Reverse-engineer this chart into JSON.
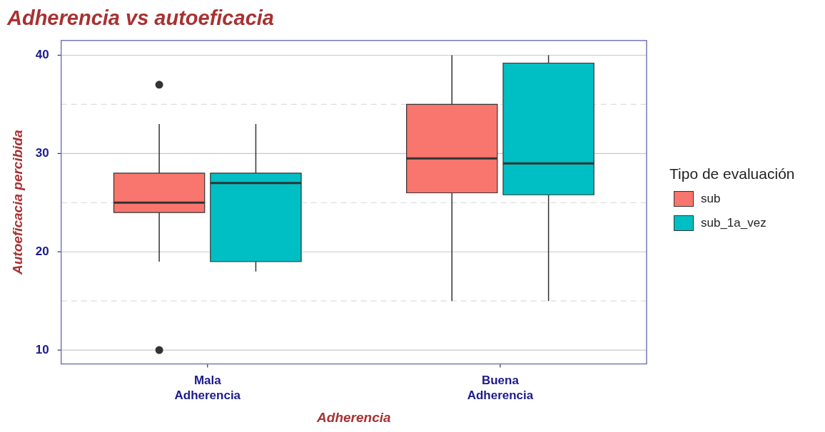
{
  "chart_data": {
    "type": "box",
    "title": "Adherencia vs autoeficacia",
    "xlabel": "Adherencia",
    "ylabel": "Autoeficacia percibida",
    "legend_title": "Tipo de evaluación",
    "categories": [
      "Mala Adherencia",
      "Buena Adherencia"
    ],
    "series": [
      {
        "name": "sub",
        "color": "#f8766d",
        "boxes": [
          {
            "low": 19,
            "q1": 24,
            "median": 25,
            "q3": 28,
            "high": 33,
            "outliers": [
              37,
              10
            ]
          },
          {
            "low": 15,
            "q1": 26,
            "median": 29.5,
            "q3": 35,
            "high": 40
          }
        ]
      },
      {
        "name": "sub_1a_vez",
        "color": "#00bfc4",
        "boxes": [
          {
            "low": 18,
            "q1": 19,
            "median": 27,
            "q3": 28,
            "high": 33
          },
          {
            "low": 15,
            "q1": 25.8,
            "median": 29,
            "q3": 39.2,
            "high": 40
          }
        ]
      }
    ],
    "ylim": [
      8.6,
      41.5
    ],
    "yticks": [
      10,
      {
        "value": 15,
        "label": null
      },
      20,
      {
        "value": 25,
        "label": null
      },
      30,
      {
        "value": 35,
        "label": null
      },
      40
    ],
    "grid": "y",
    "legend": "right"
  }
}
